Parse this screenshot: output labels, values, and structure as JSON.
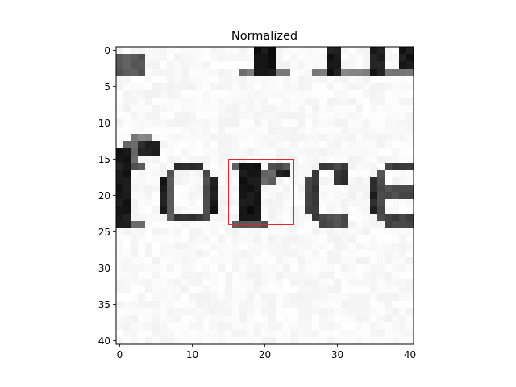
{
  "chart_data": {
    "type": "heatmap",
    "title": "Normalized",
    "xlabel": "",
    "ylabel": "",
    "rows": 41,
    "cols": 41,
    "xlim": [
      -0.5,
      40.5
    ],
    "ylim": [
      40.5,
      -0.5
    ],
    "y_axis_inverted": true,
    "colormap": "gray",
    "xticks": [
      0,
      10,
      20,
      30,
      40
    ],
    "yticks": [
      0,
      5,
      10,
      15,
      20,
      25,
      30,
      35,
      40
    ],
    "image_content": "grayscale scan of printed text showing the word fragment 'force' with tops of letters above",
    "dark_blocks": [
      {
        "x0": 0,
        "x1": 3,
        "y0": 1,
        "y1": 3,
        "v": 0.35
      },
      {
        "x0": 19,
        "x1": 21,
        "y0": 0,
        "y1": 3,
        "v": 0.08
      },
      {
        "x0": 17,
        "x1": 23,
        "y0": 3,
        "y1": 3,
        "v": 0.45
      },
      {
        "x0": 29,
        "x1": 30,
        "y0": 0,
        "y1": 3,
        "v": 0.1
      },
      {
        "x0": 27,
        "x1": 32,
        "y0": 3,
        "y1": 3,
        "v": 0.5
      },
      {
        "x0": 35,
        "x1": 36,
        "y0": 0,
        "y1": 3,
        "v": 0.12
      },
      {
        "x0": 33,
        "x1": 37,
        "y0": 3,
        "y1": 3,
        "v": 0.5
      },
      {
        "x0": 39,
        "x1": 40,
        "y0": 0,
        "y1": 2,
        "v": 0.1
      },
      {
        "x0": 38,
        "x1": 40,
        "y0": 3,
        "y1": 3,
        "v": 0.45
      },
      {
        "x0": 0,
        "x1": 1,
        "y0": 14,
        "y1": 24,
        "v": 0.1
      },
      {
        "x0": 1,
        "x1": 2,
        "y0": 13,
        "y1": 15,
        "v": 0.4
      },
      {
        "x0": 2,
        "x1": 4,
        "y0": 12,
        "y1": 13,
        "v": 0.5
      },
      {
        "x0": 3,
        "x1": 5,
        "y0": 13,
        "y1": 14,
        "v": 0.15
      },
      {
        "x0": 0,
        "x1": 3,
        "y0": 16,
        "y1": 16,
        "v": 0.35
      },
      {
        "x0": 0,
        "x1": 3,
        "y0": 24,
        "y1": 24,
        "v": 0.4
      },
      {
        "x0": 6,
        "x1": 6,
        "y0": 18,
        "y1": 22,
        "v": 0.1
      },
      {
        "x0": 7,
        "x1": 7,
        "y0": 17,
        "y1": 23,
        "v": 0.35
      },
      {
        "x0": 8,
        "x1": 11,
        "y0": 16,
        "y1": 16,
        "v": 0.2
      },
      {
        "x0": 8,
        "x1": 11,
        "y0": 23,
        "y1": 23,
        "v": 0.2
      },
      {
        "x0": 12,
        "x1": 12,
        "y0": 17,
        "y1": 23,
        "v": 0.3
      },
      {
        "x0": 13,
        "x1": 13,
        "y0": 18,
        "y1": 22,
        "v": 0.1
      },
      {
        "x0": 16,
        "x1": 18,
        "y0": 16,
        "y1": 16,
        "v": 0.35
      },
      {
        "x0": 17,
        "x1": 19,
        "y0": 16,
        "y1": 23,
        "v": 0.08
      },
      {
        "x0": 16,
        "x1": 20,
        "y0": 24,
        "y1": 24,
        "v": 0.35
      },
      {
        "x0": 20,
        "x1": 21,
        "y0": 17,
        "y1": 18,
        "v": 0.4
      },
      {
        "x0": 21,
        "x1": 23,
        "y0": 16,
        "y1": 16,
        "v": 0.3
      },
      {
        "x0": 22,
        "x1": 23,
        "y0": 17,
        "y1": 17,
        "v": 0.1
      },
      {
        "x0": 26,
        "x1": 26,
        "y0": 18,
        "y1": 22,
        "v": 0.25
      },
      {
        "x0": 27,
        "x1": 27,
        "y0": 17,
        "y1": 23,
        "v": 0.2
      },
      {
        "x0": 28,
        "x1": 31,
        "y0": 16,
        "y1": 16,
        "v": 0.25
      },
      {
        "x0": 28,
        "x1": 31,
        "y0": 23,
        "y1": 24,
        "v": 0.3
      },
      {
        "x0": 30,
        "x1": 31,
        "y0": 17,
        "y1": 18,
        "v": 0.2
      },
      {
        "x0": 35,
        "x1": 35,
        "y0": 18,
        "y1": 22,
        "v": 0.15
      },
      {
        "x0": 36,
        "x1": 36,
        "y0": 17,
        "y1": 23,
        "v": 0.3
      },
      {
        "x0": 37,
        "x1": 40,
        "y0": 16,
        "y1": 16,
        "v": 0.25
      },
      {
        "x0": 37,
        "x1": 40,
        "y0": 23,
        "y1": 24,
        "v": 0.25
      },
      {
        "x0": 37,
        "x1": 40,
        "y0": 19,
        "y1": 20,
        "v": 0.3
      }
    ],
    "highlight_rect": {
      "x": 15,
      "y": 15,
      "width": 9,
      "height": 9,
      "color": "#e8242b"
    }
  }
}
